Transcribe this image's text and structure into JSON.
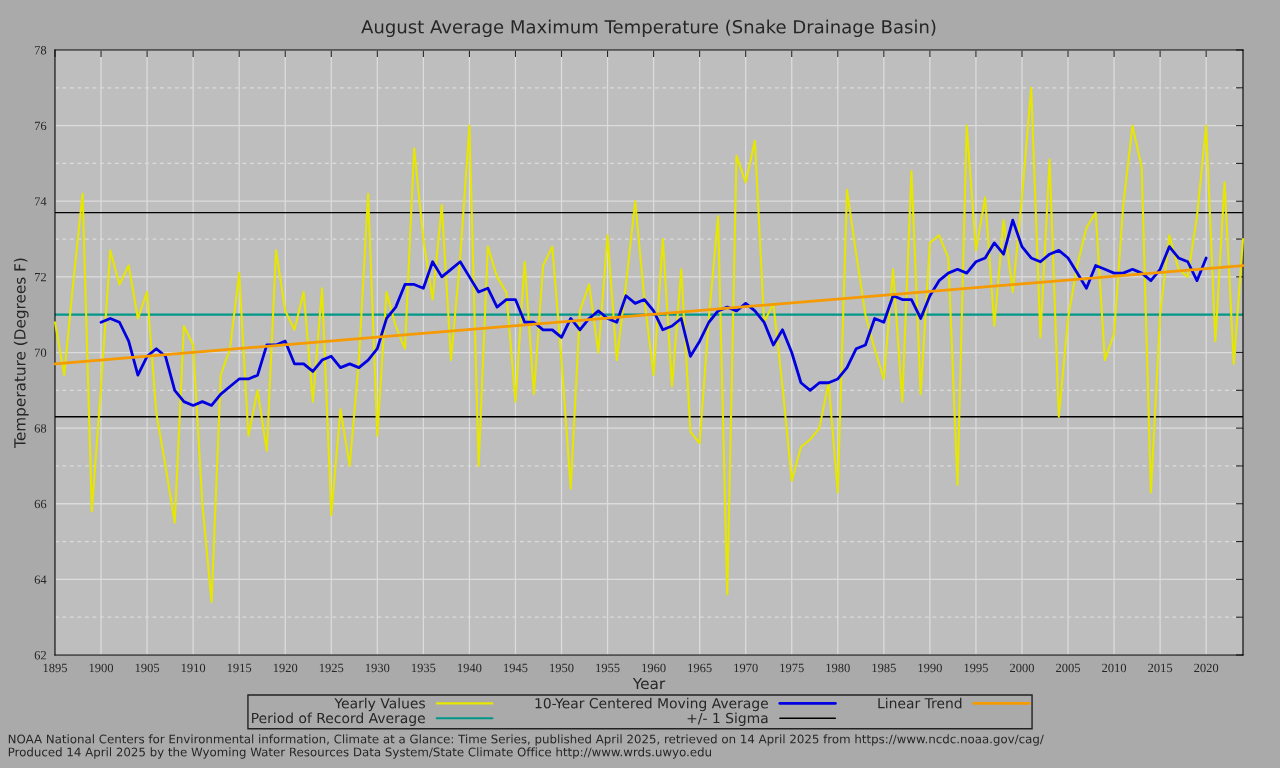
{
  "chart_data": {
    "type": "line",
    "title": "August Average Maximum Temperature (Snake Drainage Basin)",
    "xlabel": "Year",
    "ylabel": "Temperature (Degrees F)",
    "xlim": [
      1895,
      2024
    ],
    "xticks": [
      1895,
      1900,
      1905,
      1910,
      1915,
      1920,
      1925,
      1930,
      1935,
      1940,
      1945,
      1950,
      1955,
      1960,
      1965,
      1970,
      1975,
      1980,
      1985,
      1990,
      1995,
      2000,
      2005,
      2010,
      2015,
      2020
    ],
    "ylim": [
      62,
      78
    ],
    "yticks": [
      62,
      {
        "value": 63,
        "label": null
      },
      64,
      {
        "value": 65,
        "label": null
      },
      66,
      {
        "value": 67,
        "label": null
      },
      68,
      {
        "value": 69,
        "label": null
      },
      70,
      {
        "value": 71,
        "label": null
      },
      72,
      {
        "value": 73,
        "label": null
      },
      74,
      {
        "value": 75,
        "label": null
      },
      76,
      {
        "value": 77,
        "label": null
      },
      78
    ],
    "grid": true,
    "legend": "bottom",
    "line_style": "solid",
    "marker": "none",
    "series": [
      {
        "name": "Yearly Values",
        "color": "#e6e600",
        "x": [
          1895,
          1896,
          1897,
          1898,
          1899,
          1900,
          1901,
          1902,
          1903,
          1904,
          1905,
          1906,
          1907,
          1908,
          1909,
          1910,
          1911,
          1912,
          1913,
          1914,
          1915,
          1916,
          1917,
          1918,
          1919,
          1920,
          1921,
          1922,
          1923,
          1924,
          1925,
          1926,
          1927,
          1928,
          1929,
          1930,
          1931,
          1932,
          1933,
          1934,
          1935,
          1936,
          1937,
          1938,
          1939,
          1940,
          1941,
          1942,
          1943,
          1944,
          1945,
          1946,
          1947,
          1948,
          1949,
          1950,
          1951,
          1952,
          1953,
          1954,
          1955,
          1956,
          1957,
          1958,
          1959,
          1960,
          1961,
          1962,
          1963,
          1964,
          1965,
          1966,
          1967,
          1968,
          1969,
          1970,
          1971,
          1972,
          1973,
          1974,
          1975,
          1976,
          1977,
          1978,
          1979,
          1980,
          1981,
          1982,
          1983,
          1984,
          1985,
          1986,
          1987,
          1988,
          1989,
          1990,
          1991,
          1992,
          1993,
          1994,
          1995,
          1996,
          1997,
          1998,
          1999,
          2000,
          2001,
          2002,
          2003,
          2004,
          2005,
          2006,
          2007,
          2008,
          2009,
          2010,
          2011,
          2012,
          2013,
          2014,
          2015,
          2016,
          2017,
          2018,
          2019,
          2020,
          2021,
          2022,
          2023,
          2024
        ],
        "values": [
          70.8,
          69.4,
          71.9,
          74.2,
          65.8,
          69.1,
          72.7,
          71.8,
          72.3,
          70.9,
          71.6,
          68.4,
          67.0,
          65.5,
          70.7,
          70.2,
          66.0,
          63.4,
          69.4,
          70.1,
          72.1,
          67.8,
          69.0,
          67.4,
          72.7,
          71.1,
          70.6,
          71.6,
          68.7,
          71.7,
          65.7,
          68.5,
          67.0,
          69.8,
          74.2,
          67.8,
          71.6,
          70.7,
          70.1,
          75.4,
          73.0,
          71.4,
          73.9,
          69.8,
          72.5,
          76.0,
          67.0,
          72.8,
          72.0,
          71.6,
          68.7,
          72.4,
          68.9,
          72.3,
          72.8,
          69.8,
          66.4,
          71.1,
          71.8,
          70.0,
          73.1,
          69.8,
          71.8,
          74.0,
          71.4,
          69.4,
          73.0,
          69.1,
          72.2,
          67.9,
          67.6,
          70.9,
          73.6,
          63.6,
          75.2,
          74.5,
          75.6,
          70.8,
          71.3,
          69.1,
          66.6,
          67.5,
          67.7,
          68.0,
          69.2,
          66.3,
          74.3,
          72.6,
          71.0,
          70.1,
          69.3,
          72.2,
          68.7,
          74.8,
          68.9,
          72.9,
          73.1,
          72.5,
          66.5,
          76.0,
          72.7,
          74.1,
          70.7,
          73.5,
          71.6,
          74.1,
          77.0,
          70.4,
          75.1,
          68.3,
          70.9,
          72.3,
          73.3,
          73.7,
          69.8,
          70.5,
          73.9,
          76.0,
          74.9,
          66.3,
          71.0,
          73.1,
          72.2,
          72.0,
          73.6,
          76.0,
          70.3,
          74.5,
          69.7,
          73.0
        ]
      },
      {
        "name": "10-Year Centered Moving Average",
        "color": "#0000e0",
        "x": [
          1900,
          1901,
          1902,
          1903,
          1904,
          1905,
          1906,
          1907,
          1908,
          1909,
          1910,
          1911,
          1912,
          1913,
          1914,
          1915,
          1916,
          1917,
          1918,
          1919,
          1920,
          1921,
          1922,
          1923,
          1924,
          1925,
          1926,
          1927,
          1928,
          1929,
          1930,
          1931,
          1932,
          1933,
          1934,
          1935,
          1936,
          1937,
          1938,
          1939,
          1940,
          1941,
          1942,
          1943,
          1944,
          1945,
          1946,
          1947,
          1948,
          1949,
          1950,
          1951,
          1952,
          1953,
          1954,
          1955,
          1956,
          1957,
          1958,
          1959,
          1960,
          1961,
          1962,
          1963,
          1964,
          1965,
          1966,
          1967,
          1968,
          1969,
          1970,
          1971,
          1972,
          1973,
          1974,
          1975,
          1976,
          1977,
          1978,
          1979,
          1980,
          1981,
          1982,
          1983,
          1984,
          1985,
          1986,
          1987,
          1988,
          1989,
          1990,
          1991,
          1992,
          1993,
          1994,
          1995,
          1996,
          1997,
          1998,
          1999,
          2000,
          2001,
          2002,
          2003,
          2004,
          2005,
          2006,
          2007,
          2008,
          2009,
          2010,
          2011,
          2012,
          2013,
          2014,
          2015,
          2016,
          2017,
          2018,
          2019,
          2020
        ],
        "values": [
          70.8,
          70.9,
          70.8,
          70.3,
          69.4,
          69.9,
          70.1,
          69.9,
          69.0,
          68.7,
          68.6,
          68.7,
          68.6,
          68.9,
          69.1,
          69.3,
          69.3,
          69.4,
          70.2,
          70.2,
          70.3,
          69.7,
          69.7,
          69.5,
          69.8,
          69.9,
          69.6,
          69.7,
          69.6,
          69.8,
          70.1,
          70.9,
          71.2,
          71.8,
          71.8,
          71.7,
          72.4,
          72.0,
          72.2,
          72.4,
          72.0,
          71.6,
          71.7,
          71.2,
          71.4,
          71.4,
          70.8,
          70.8,
          70.6,
          70.6,
          70.4,
          70.9,
          70.6,
          70.9,
          71.1,
          70.9,
          70.8,
          71.5,
          71.3,
          71.4,
          71.1,
          70.6,
          70.7,
          70.9,
          69.9,
          70.3,
          70.8,
          71.1,
          71.2,
          71.1,
          71.3,
          71.1,
          70.8,
          70.2,
          70.6,
          70.0,
          69.2,
          69.0,
          69.2,
          69.2,
          69.3,
          69.6,
          70.1,
          70.2,
          70.9,
          70.8,
          71.5,
          71.4,
          71.4,
          70.9,
          71.5,
          71.9,
          72.1,
          72.2,
          72.1,
          72.4,
          72.5,
          72.9,
          72.6,
          73.5,
          72.8,
          72.5,
          72.4,
          72.6,
          72.7,
          72.5,
          72.1,
          71.7,
          72.3,
          72.2,
          72.1,
          72.1,
          72.2,
          72.1,
          71.9,
          72.2,
          72.8,
          72.5,
          72.4,
          71.9,
          72.5
        ]
      },
      {
        "name": "Linear Trend",
        "color": "#f59a00",
        "x": [
          1895,
          2024
        ],
        "values": [
          69.7,
          72.3
        ]
      }
    ],
    "ref_lines": [
      {
        "axis": "y",
        "value": 71.0,
        "label": "Period of Record Average",
        "color": "#009688",
        "line_style": "solid"
      },
      {
        "axis": "y",
        "value": 73.7,
        "label": "+/- 1 Sigma",
        "color": "#000000",
        "line_style": "solid"
      },
      {
        "axis": "y",
        "value": 68.3,
        "color": "#000000",
        "line_style": "solid"
      }
    ],
    "annotations": [
      "NOAA National Centers for Environmental information, Climate at a Glance: Time Series, published April 2025, retrieved on 14 April 2025 from https://www.ncdc.noaa.gov/cag/",
      "Produced 14 April 2025 by the Wyoming Water Resources Data System/State Climate Office http://www.wrds.uwyo.edu"
    ]
  }
}
